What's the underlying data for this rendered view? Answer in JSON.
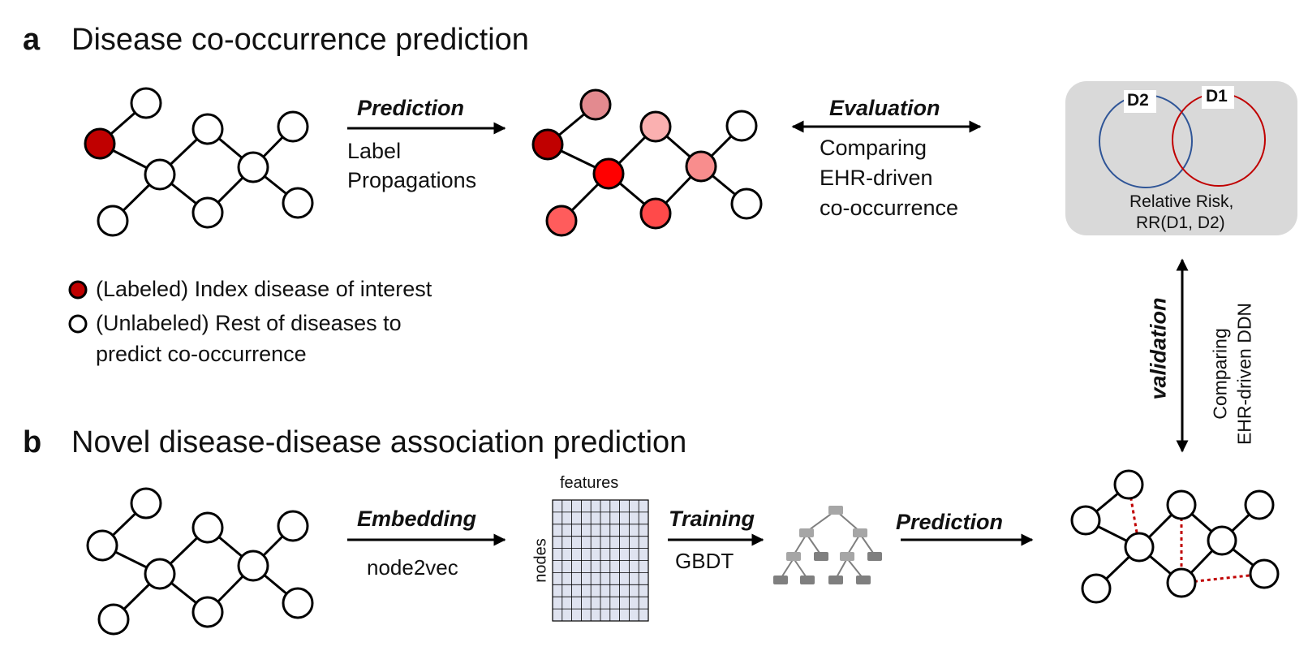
{
  "panel_a": {
    "letter": "a",
    "title": "Disease co-occurrence prediction",
    "prediction_label": "Prediction",
    "prediction_sub": [
      "Label",
      "Propagations"
    ],
    "evaluation_label": "Evaluation",
    "evaluation_sub": [
      "Comparing",
      "EHR-driven",
      "co-occurrence"
    ],
    "venn": {
      "set_left": "D2",
      "set_right": "D1",
      "caption": [
        "Relative Risk,",
        "RR(D1, D2)"
      ]
    },
    "legend": {
      "labeled": "(Labeled) Index disease of interest",
      "unlabeled": [
        "(Unlabeled) Rest of diseases to",
        "predict co-occurrence"
      ]
    }
  },
  "validation": {
    "label": "validation",
    "sub": [
      "Comparing",
      "EHR-driven DDN"
    ]
  },
  "panel_b": {
    "letter": "b",
    "title": "Novel disease-disease association prediction",
    "embedding_label": "Embedding",
    "embedding_sub": "node2vec",
    "matrix_top": "features",
    "matrix_side": "nodes",
    "training_label": "Training",
    "training_sub": "GBDT",
    "prediction_label": "Prediction"
  },
  "colors": {
    "index_node": "#c00000",
    "venn_d1": "#c00000",
    "venn_d2": "#2f5597",
    "venn_box": "#d9d9d9",
    "matrix_fill": "#dfe3f0",
    "dotted_edge": "#c00000"
  }
}
